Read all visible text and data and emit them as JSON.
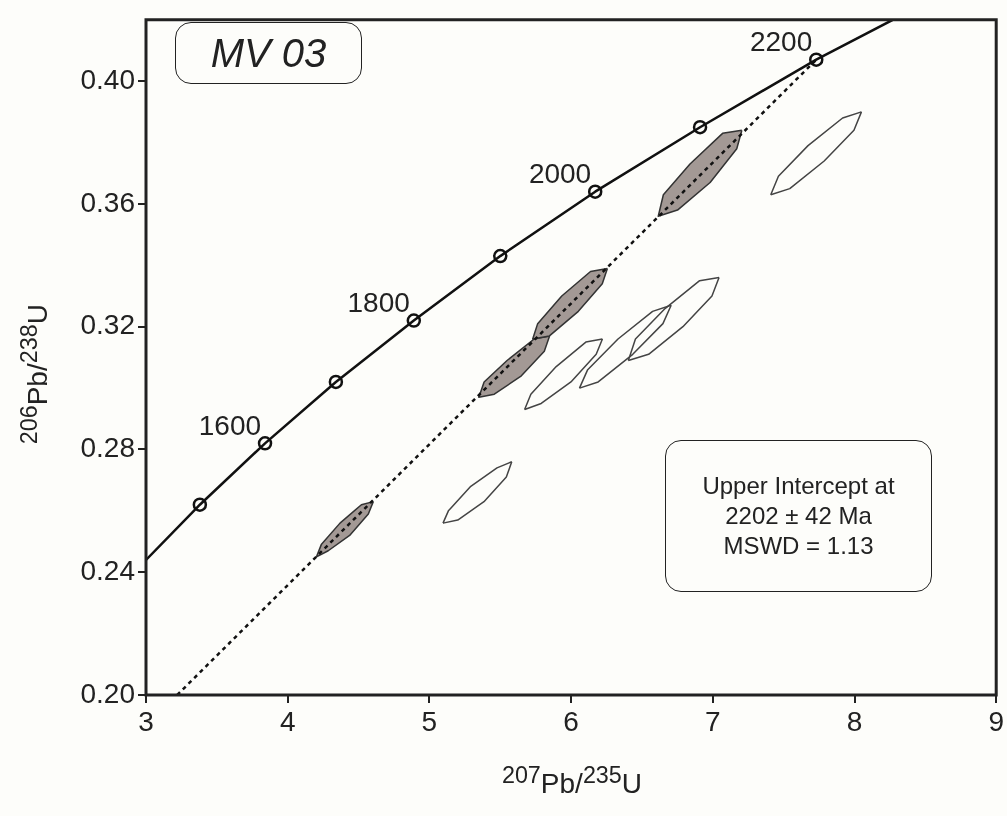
{
  "chart_data": {
    "type": "line",
    "xlabel": "$^{207}$Pb/$^{235}$U",
    "ylabel": "$^{206}$Pb/$^{238}$U",
    "xlim": [
      3,
      9
    ],
    "ylim": [
      0.2,
      0.42
    ],
    "xticks": [
      3,
      4,
      5,
      6,
      7,
      8,
      9
    ],
    "yticks": [
      {
        "value": 0.2,
        "label": "0.20"
      },
      {
        "value": 0.24,
        "label": "0.24"
      },
      {
        "value": 0.28,
        "label": "0.28"
      },
      {
        "value": 0.32,
        "label": "0.32"
      },
      {
        "value": 0.36,
        "label": "0.36"
      },
      {
        "value": 0.4,
        "label": "0.40"
      }
    ],
    "legend": false,
    "annotations": [
      "MV 03",
      "Upper Intercept at\n2202 ± 42 Ma\nMSWD = 1.13",
      {
        "text": "1600",
        "x": 3.84,
        "y": 0.282
      },
      {
        "text": "1800",
        "x": 4.89,
        "y": 0.322
      },
      {
        "text": "2000",
        "x": 6.17,
        "y": 0.364
      },
      {
        "text": "2200",
        "x": 7.73,
        "y": 0.407
      }
    ],
    "series": [
      {
        "color": "#111111",
        "x": [
          3,
          3.38,
          3.84,
          4.34,
          4.89,
          5.5,
          6.17,
          6.91,
          7.73,
          8.27
        ],
        "values": [
          0.244,
          0.262,
          0.282,
          0.302,
          0.322,
          0.343,
          0.364,
          0.385,
          0.407,
          0.42
        ]
      },
      {
        "type": "scatter",
        "marker": "circle",
        "color": "#111111",
        "x": [
          3.38,
          3.84,
          4.34,
          4.89,
          5.5,
          6.17,
          6.91,
          7.73
        ],
        "values": [
          0.262,
          0.282,
          0.302,
          0.322,
          0.343,
          0.364,
          0.385,
          0.407
        ]
      },
      {
        "line_style": "dotted",
        "color": "#111111",
        "x": [
          3.22,
          7.73
        ],
        "values": [
          0.2,
          0.407
        ]
      },
      {
        "type": "area",
        "color": "#a39995",
        "x": [
          7.205,
          7.169,
          6.981,
          6.751,
          6.615,
          6.651,
          6.839,
          7.069,
          7.205
        ],
        "values": [
          0.384,
          0.378,
          0.367,
          0.358,
          0.356,
          0.363,
          0.373,
          0.383,
          0.384
        ]
      },
      {
        "type": "area",
        "color": "#a39995",
        "x": [
          6.256,
          6.22,
          6.051,
          5.847,
          5.729,
          5.764,
          5.934,
          6.137,
          6.256
        ],
        "values": [
          0.339,
          0.334,
          0.325,
          0.317,
          0.316,
          0.321,
          0.33,
          0.338,
          0.339
        ]
      },
      {
        "type": "area",
        "color": "#a39995",
        "x": [
          5.848,
          5.811,
          5.649,
          5.458,
          5.349,
          5.386,
          5.548,
          5.739,
          5.848
        ],
        "values": [
          0.317,
          0.312,
          0.304,
          0.298,
          0.297,
          0.302,
          0.309,
          0.316,
          0.317
        ]
      },
      {
        "type": "area",
        "color": "#a39995",
        "x": [
          4.604,
          4.569,
          4.437,
          4.286,
          4.203,
          4.237,
          4.369,
          4.52,
          4.604
        ],
        "values": [
          0.263,
          0.259,
          0.252,
          0.247,
          0.245,
          0.249,
          0.256,
          0.262,
          0.263
        ]
      },
      {
        "color": "#444444",
        "x": [
          7.409,
          7.543,
          7.786,
          7.996,
          8.049
        ],
        "values": [
          0.363,
          0.365,
          0.374,
          0.384,
          0.39
        ]
      },
      {
        "color": "#444444",
        "x": [
          7.409,
          7.463,
          7.672,
          7.916,
          8.049
        ],
        "values": [
          0.363,
          0.369,
          0.379,
          0.388,
          0.39
        ]
      },
      {
        "color": "#444444",
        "x": [
          5.672,
          5.789,
          5.999,
          6.177,
          6.221
        ],
        "values": [
          0.293,
          0.295,
          0.302,
          0.311,
          0.316
        ]
      },
      {
        "color": "#444444",
        "x": [
          5.672,
          5.716,
          5.895,
          6.104,
          6.221
        ],
        "values": [
          0.293,
          0.298,
          0.307,
          0.315,
          0.316
        ]
      },
      {
        "color": "#444444",
        "x": [
          6.059,
          6.191,
          6.435,
          6.648,
          6.706
        ],
        "values": [
          0.3,
          0.302,
          0.311,
          0.321,
          0.327
        ]
      },
      {
        "color": "#444444",
        "x": [
          6.059,
          6.117,
          6.331,
          6.575,
          6.706
        ],
        "values": [
          0.3,
          0.306,
          0.316,
          0.325,
          0.327
        ]
      },
      {
        "color": "#444444",
        "x": [
          6.404,
          6.547,
          6.789,
          6.994,
          7.044
        ],
        "values": [
          0.309,
          0.311,
          0.32,
          0.33,
          0.336
        ]
      },
      {
        "color": "#444444",
        "x": [
          6.404,
          6.454,
          6.665,
          6.907,
          7.044
        ],
        "values": [
          0.309,
          0.316,
          0.326,
          0.335,
          0.336
        ]
      },
      {
        "color": "#444444",
        "x": [
          5.096,
          5.2,
          5.385,
          5.543,
          5.581
        ],
        "values": [
          0.256,
          0.257,
          0.263,
          0.271,
          0.276
        ]
      },
      {
        "color": "#444444",
        "x": [
          5.096,
          5.134,
          5.292,
          5.477,
          5.581
        ],
        "values": [
          0.256,
          0.26,
          0.268,
          0.274,
          0.276
        ]
      }
    ]
  }
}
